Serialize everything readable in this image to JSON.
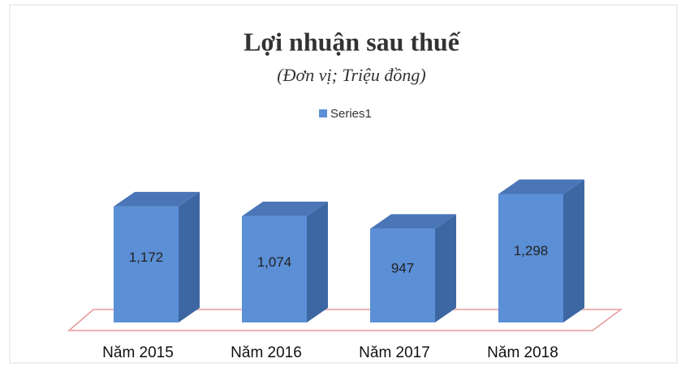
{
  "chart_data": {
    "type": "bar3d",
    "title": "Lợi nhuận sau thuế",
    "subtitle": "(Đơn vị; Triệu đồng)",
    "categories": [
      "Năm 2015",
      "Năm 2016",
      "Năm 2017",
      "Năm 2018"
    ],
    "series": [
      {
        "name": "Series1",
        "color": "#5b8fd6",
        "values": [
          1172,
          1074,
          947,
          1298
        ],
        "value_labels": [
          "1,172",
          "1,074",
          "947",
          "1,298"
        ]
      }
    ],
    "ylim": [
      0,
      1400
    ]
  }
}
